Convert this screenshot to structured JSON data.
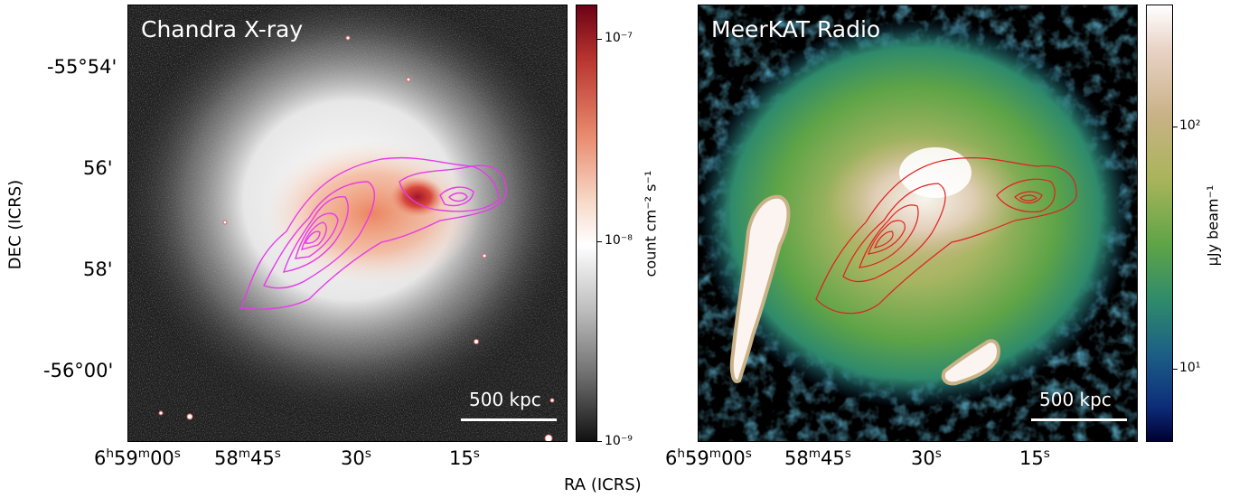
{
  "left_panel": {
    "title": "Chandra X-ray",
    "scale_bar": "500 kpc",
    "colorbar": {
      "label": "count cm⁻² s⁻¹",
      "ticks": [
        "10⁻⁷",
        "10⁻⁸",
        "10⁻⁹"
      ],
      "colors": [
        "#6b0216",
        "#b7332e",
        "#e98b6e",
        "#f7d9c9",
        "#ffffff",
        "#bdbdbd",
        "#6e6e6e",
        "#111111"
      ]
    },
    "contour_color": "#e63be8"
  },
  "right_panel": {
    "title": "MeerKAT Radio",
    "scale_bar": "500 kpc",
    "colorbar": {
      "label": "μJy beam⁻¹",
      "ticks": [
        "10²",
        "10¹"
      ],
      "colors": [
        "#ffffff",
        "#e9d3c6",
        "#c9b287",
        "#a9b45a",
        "#5ea447",
        "#2e8a6b",
        "#1c5f86",
        "#0d2d7a",
        "#000033"
      ]
    },
    "contour_color": "#e02020"
  },
  "axes": {
    "xlabel": "RA (ICRS)",
    "ylabel": "DEC (ICRS)",
    "dec_ticks": [
      "-55°54'",
      "56'",
      "58'",
      "-56°00'"
    ],
    "ra_ticks_left": [
      "6h59m00s",
      "58m45s",
      "30s",
      "15s"
    ],
    "ra_ticks_right": [
      "6h59m00s",
      "58m45s",
      "30s",
      "15s"
    ]
  }
}
